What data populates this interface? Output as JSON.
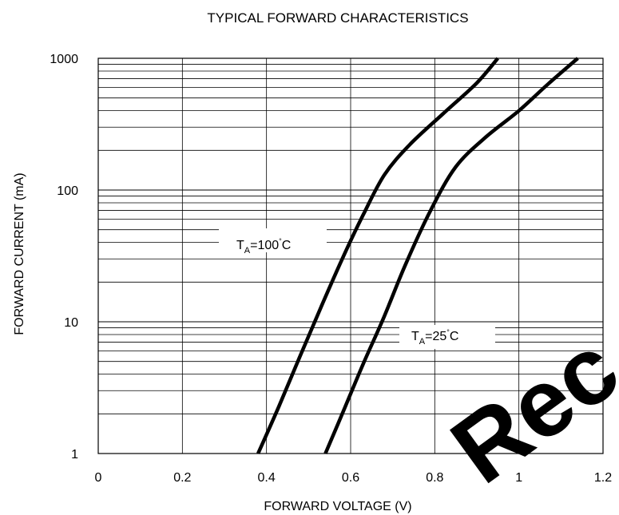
{
  "chart_data": {
    "type": "line",
    "title": "TYPICAL FORWARD CHARACTERISTICS",
    "xlabel": "FORWARD VOLTAGE (V)",
    "ylabel": "FORWARD CURRENT (mA)",
    "xlim": [
      0,
      1.2
    ],
    "ylim": [
      1,
      1000
    ],
    "yscale": "log",
    "grid": true,
    "x_ticks": [
      "0",
      "0.2",
      "0.4",
      "0.6",
      "0.8",
      "1",
      "1.2"
    ],
    "y_ticks": [
      "1",
      "10",
      "100",
      "1000"
    ],
    "series": [
      {
        "name": "TA=100°C",
        "label_main": "T",
        "label_sub": "A",
        "label_rest": "=100",
        "label_deg": "°",
        "label_unit": "C",
        "x": [
          0.38,
          0.43,
          0.48,
          0.53,
          0.58,
          0.63,
          0.68,
          0.74,
          0.82,
          0.9,
          0.95
        ],
        "y": [
          1,
          2.3,
          5.5,
          13,
          30,
          65,
          130,
          220,
          380,
          650,
          1000
        ]
      },
      {
        "name": "TA=25°C",
        "label_main": "T",
        "label_sub": "A",
        "label_rest": "=25",
        "label_deg": "°",
        "label_unit": "C",
        "x": [
          0.54,
          0.58,
          0.63,
          0.68,
          0.73,
          0.79,
          0.85,
          0.92,
          1.0,
          1.07,
          1.14
        ],
        "y": [
          1,
          2.0,
          4.8,
          11,
          27,
          70,
          150,
          250,
          400,
          640,
          1000
        ]
      }
    ]
  },
  "watermark": "Rec"
}
